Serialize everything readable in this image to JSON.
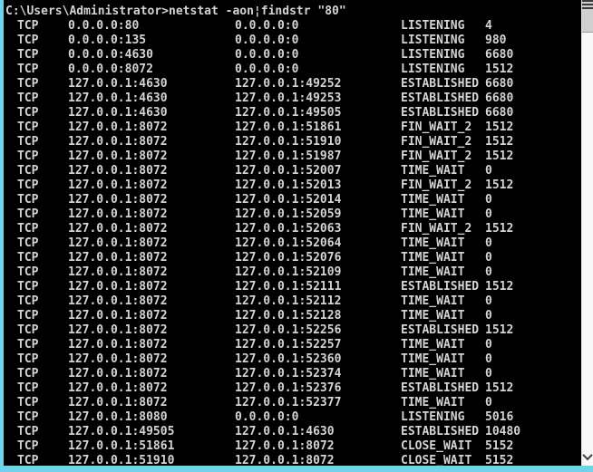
{
  "colors": {
    "background": "#000000",
    "text": "#d4d4d4",
    "frame_cyan": "#6ed4e8",
    "scrollbar_track": "#f8f8f8",
    "scrollbar_thumb": "#cfcfcf",
    "scrollbar_arrow": "#404040"
  },
  "terminal": {
    "command_line": "C:\\Users\\Administrator>netstat -aon¦findstr \"80\""
  },
  "netstat": {
    "rows": [
      {
        "proto": "TCP",
        "local": "0.0.0.0:80",
        "foreign": "0.0.0.0:0",
        "state": "LISTENING",
        "pid": "4"
      },
      {
        "proto": "TCP",
        "local": "0.0.0.0:135",
        "foreign": "0.0.0.0:0",
        "state": "LISTENING",
        "pid": "980"
      },
      {
        "proto": "TCP",
        "local": "0.0.0.0:4630",
        "foreign": "0.0.0.0:0",
        "state": "LISTENING",
        "pid": "6680"
      },
      {
        "proto": "TCP",
        "local": "0.0.0.0:8072",
        "foreign": "0.0.0.0:0",
        "state": "LISTENING",
        "pid": "1512"
      },
      {
        "proto": "TCP",
        "local": "127.0.0.1:4630",
        "foreign": "127.0.0.1:49252",
        "state": "ESTABLISHED",
        "pid": "6680"
      },
      {
        "proto": "TCP",
        "local": "127.0.0.1:4630",
        "foreign": "127.0.0.1:49253",
        "state": "ESTABLISHED",
        "pid": "6680"
      },
      {
        "proto": "TCP",
        "local": "127.0.0.1:4630",
        "foreign": "127.0.0.1:49505",
        "state": "ESTABLISHED",
        "pid": "6680"
      },
      {
        "proto": "TCP",
        "local": "127.0.0.1:8072",
        "foreign": "127.0.0.1:51861",
        "state": "FIN_WAIT_2",
        "pid": "1512"
      },
      {
        "proto": "TCP",
        "local": "127.0.0.1:8072",
        "foreign": "127.0.0.1:51910",
        "state": "FIN_WAIT_2",
        "pid": "1512"
      },
      {
        "proto": "TCP",
        "local": "127.0.0.1:8072",
        "foreign": "127.0.0.1:51987",
        "state": "FIN_WAIT_2",
        "pid": "1512"
      },
      {
        "proto": "TCP",
        "local": "127.0.0.1:8072",
        "foreign": "127.0.0.1:52007",
        "state": "TIME_WAIT",
        "pid": "0"
      },
      {
        "proto": "TCP",
        "local": "127.0.0.1:8072",
        "foreign": "127.0.0.1:52013",
        "state": "FIN_WAIT_2",
        "pid": "1512"
      },
      {
        "proto": "TCP",
        "local": "127.0.0.1:8072",
        "foreign": "127.0.0.1:52014",
        "state": "TIME_WAIT",
        "pid": "0"
      },
      {
        "proto": "TCP",
        "local": "127.0.0.1:8072",
        "foreign": "127.0.0.1:52059",
        "state": "TIME_WAIT",
        "pid": "0"
      },
      {
        "proto": "TCP",
        "local": "127.0.0.1:8072",
        "foreign": "127.0.0.1:52063",
        "state": "FIN_WAIT_2",
        "pid": "1512"
      },
      {
        "proto": "TCP",
        "local": "127.0.0.1:8072",
        "foreign": "127.0.0.1:52064",
        "state": "TIME_WAIT",
        "pid": "0"
      },
      {
        "proto": "TCP",
        "local": "127.0.0.1:8072",
        "foreign": "127.0.0.1:52076",
        "state": "TIME_WAIT",
        "pid": "0"
      },
      {
        "proto": "TCP",
        "local": "127.0.0.1:8072",
        "foreign": "127.0.0.1:52109",
        "state": "TIME_WAIT",
        "pid": "0"
      },
      {
        "proto": "TCP",
        "local": "127.0.0.1:8072",
        "foreign": "127.0.0.1:52111",
        "state": "ESTABLISHED",
        "pid": "1512"
      },
      {
        "proto": "TCP",
        "local": "127.0.0.1:8072",
        "foreign": "127.0.0.1:52112",
        "state": "TIME_WAIT",
        "pid": "0"
      },
      {
        "proto": "TCP",
        "local": "127.0.0.1:8072",
        "foreign": "127.0.0.1:52128",
        "state": "TIME_WAIT",
        "pid": "0"
      },
      {
        "proto": "TCP",
        "local": "127.0.0.1:8072",
        "foreign": "127.0.0.1:52256",
        "state": "ESTABLISHED",
        "pid": "1512"
      },
      {
        "proto": "TCP",
        "local": "127.0.0.1:8072",
        "foreign": "127.0.0.1:52257",
        "state": "TIME_WAIT",
        "pid": "0"
      },
      {
        "proto": "TCP",
        "local": "127.0.0.1:8072",
        "foreign": "127.0.0.1:52360",
        "state": "TIME_WAIT",
        "pid": "0"
      },
      {
        "proto": "TCP",
        "local": "127.0.0.1:8072",
        "foreign": "127.0.0.1:52374",
        "state": "TIME_WAIT",
        "pid": "0"
      },
      {
        "proto": "TCP",
        "local": "127.0.0.1:8072",
        "foreign": "127.0.0.1:52376",
        "state": "ESTABLISHED",
        "pid": "1512"
      },
      {
        "proto": "TCP",
        "local": "127.0.0.1:8072",
        "foreign": "127.0.0.1:52377",
        "state": "TIME_WAIT",
        "pid": "0"
      },
      {
        "proto": "TCP",
        "local": "127.0.0.1:8080",
        "foreign": "0.0.0.0:0",
        "state": "LISTENING",
        "pid": "5016"
      },
      {
        "proto": "TCP",
        "local": "127.0.0.1:49505",
        "foreign": "127.0.0.1:4630",
        "state": "ESTABLISHED",
        "pid": "10480"
      },
      {
        "proto": "TCP",
        "local": "127.0.0.1:51861",
        "foreign": "127.0.0.1:8072",
        "state": "CLOSE_WAIT",
        "pid": "5152"
      },
      {
        "proto": "TCP",
        "local": "127.0.0.1:51910",
        "foreign": "127.0.0.1:8072",
        "state": "CLOSE_WAIT",
        "pid": "5152"
      }
    ]
  }
}
